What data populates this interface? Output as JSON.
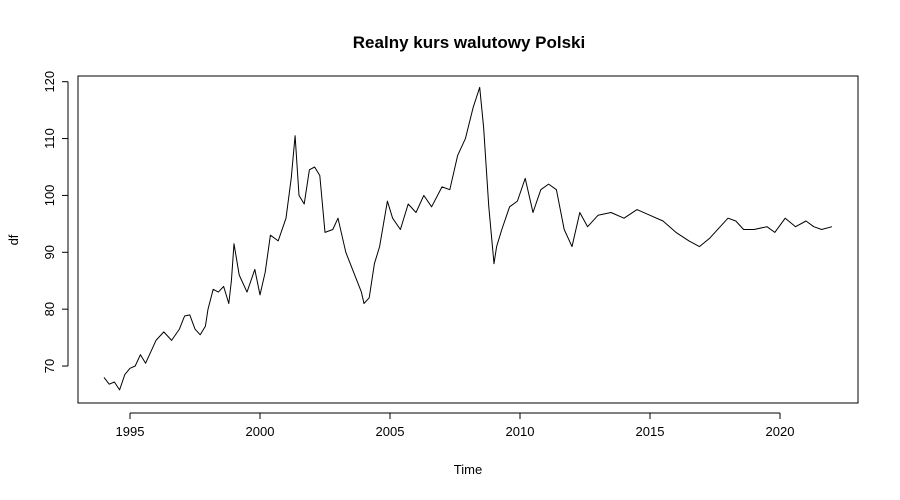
{
  "chart_data": {
    "type": "line",
    "title": "Realny kurs walutowy Polski",
    "xlabel": "Time",
    "ylabel": "df",
    "xlim": [
      1993.0,
      2023.0
    ],
    "ylim": [
      63.5,
      121.0
    ],
    "x_ticks": [
      1995,
      2000,
      2005,
      2010,
      2015,
      2020
    ],
    "x_tick_labels": [
      "1995",
      "2000",
      "2005",
      "2010",
      "2015",
      "2020"
    ],
    "y_ticks": [
      70,
      80,
      90,
      100,
      110,
      120
    ],
    "y_tick_labels": [
      "70",
      "80",
      "90",
      "100",
      "110",
      "120"
    ],
    "grid": false,
    "series": [
      {
        "x": [
          1994.0,
          1994.2,
          1994.4,
          1994.6,
          1994.8,
          1995.0,
          1995.2,
          1995.4,
          1995.6,
          1995.8,
          1996.0,
          1996.3,
          1996.6,
          1996.9,
          1997.1,
          1997.3,
          1997.5,
          1997.7,
          1997.9,
          1998.0,
          1998.2,
          1998.4,
          1998.6,
          1998.8,
          1998.9,
          1999.0,
          1999.2,
          1999.5,
          1999.8,
          2000.0,
          2000.2,
          2000.4,
          2000.7,
          2001.0,
          2001.2,
          2001.35,
          2001.5,
          2001.7,
          2001.9,
          2002.1,
          2002.3,
          2002.5,
          2002.8,
          2003.0,
          2003.3,
          2003.6,
          2003.9,
          2004.0,
          2004.2,
          2004.4,
          2004.6,
          2004.9,
          2005.1,
          2005.4,
          2005.7,
          2006.0,
          2006.3,
          2006.6,
          2007.0,
          2007.3,
          2007.6,
          2007.9,
          2008.2,
          2008.45,
          2008.6,
          2008.8,
          2009.0,
          2009.1,
          2009.3,
          2009.6,
          2009.9,
          2010.2,
          2010.5,
          2010.8,
          2011.1,
          2011.4,
          2011.7,
          2012.0,
          2012.3,
          2012.6,
          2013.0,
          2013.5,
          2014.0,
          2014.5,
          2015.0,
          2015.5,
          2016.0,
          2016.5,
          2016.9,
          2017.3,
          2017.7,
          2018.0,
          2018.3,
          2018.6,
          2019.0,
          2019.5,
          2019.8,
          2020.2,
          2020.6,
          2021.0,
          2021.3,
          2021.6,
          2022.0
        ],
        "values": [
          68.0,
          66.8,
          67.2,
          65.8,
          68.5,
          69.6,
          70.0,
          72.0,
          70.5,
          72.5,
          74.5,
          76.0,
          74.5,
          76.5,
          78.8,
          79.0,
          76.5,
          75.5,
          77.0,
          80.0,
          83.5,
          83.0,
          84.0,
          81.0,
          85.0,
          91.5,
          86.0,
          83.0,
          87.0,
          82.5,
          86.5,
          93.0,
          92.0,
          96.0,
          103.0,
          110.5,
          100.0,
          98.5,
          104.5,
          105.0,
          103.5,
          93.5,
          94.0,
          96.0,
          90.0,
          86.5,
          83.0,
          81.0,
          82.0,
          88.0,
          91.0,
          99.0,
          96.0,
          94.0,
          98.5,
          97.0,
          100.0,
          98.0,
          101.5,
          101.0,
          107.0,
          110.0,
          115.5,
          119.0,
          112.0,
          98.0,
          88.0,
          91.0,
          94.0,
          98.0,
          99.0,
          103.0,
          97.0,
          101.0,
          102.0,
          101.0,
          94.0,
          91.0,
          97.0,
          94.5,
          96.5,
          97.0,
          96.0,
          97.5,
          96.5,
          95.5,
          93.5,
          92.0,
          91.0,
          92.5,
          94.5,
          96.0,
          95.5,
          94.0,
          94.0,
          94.5,
          93.5,
          96.0,
          94.5,
          95.5,
          94.5,
          94.0,
          94.5
        ]
      }
    ]
  }
}
